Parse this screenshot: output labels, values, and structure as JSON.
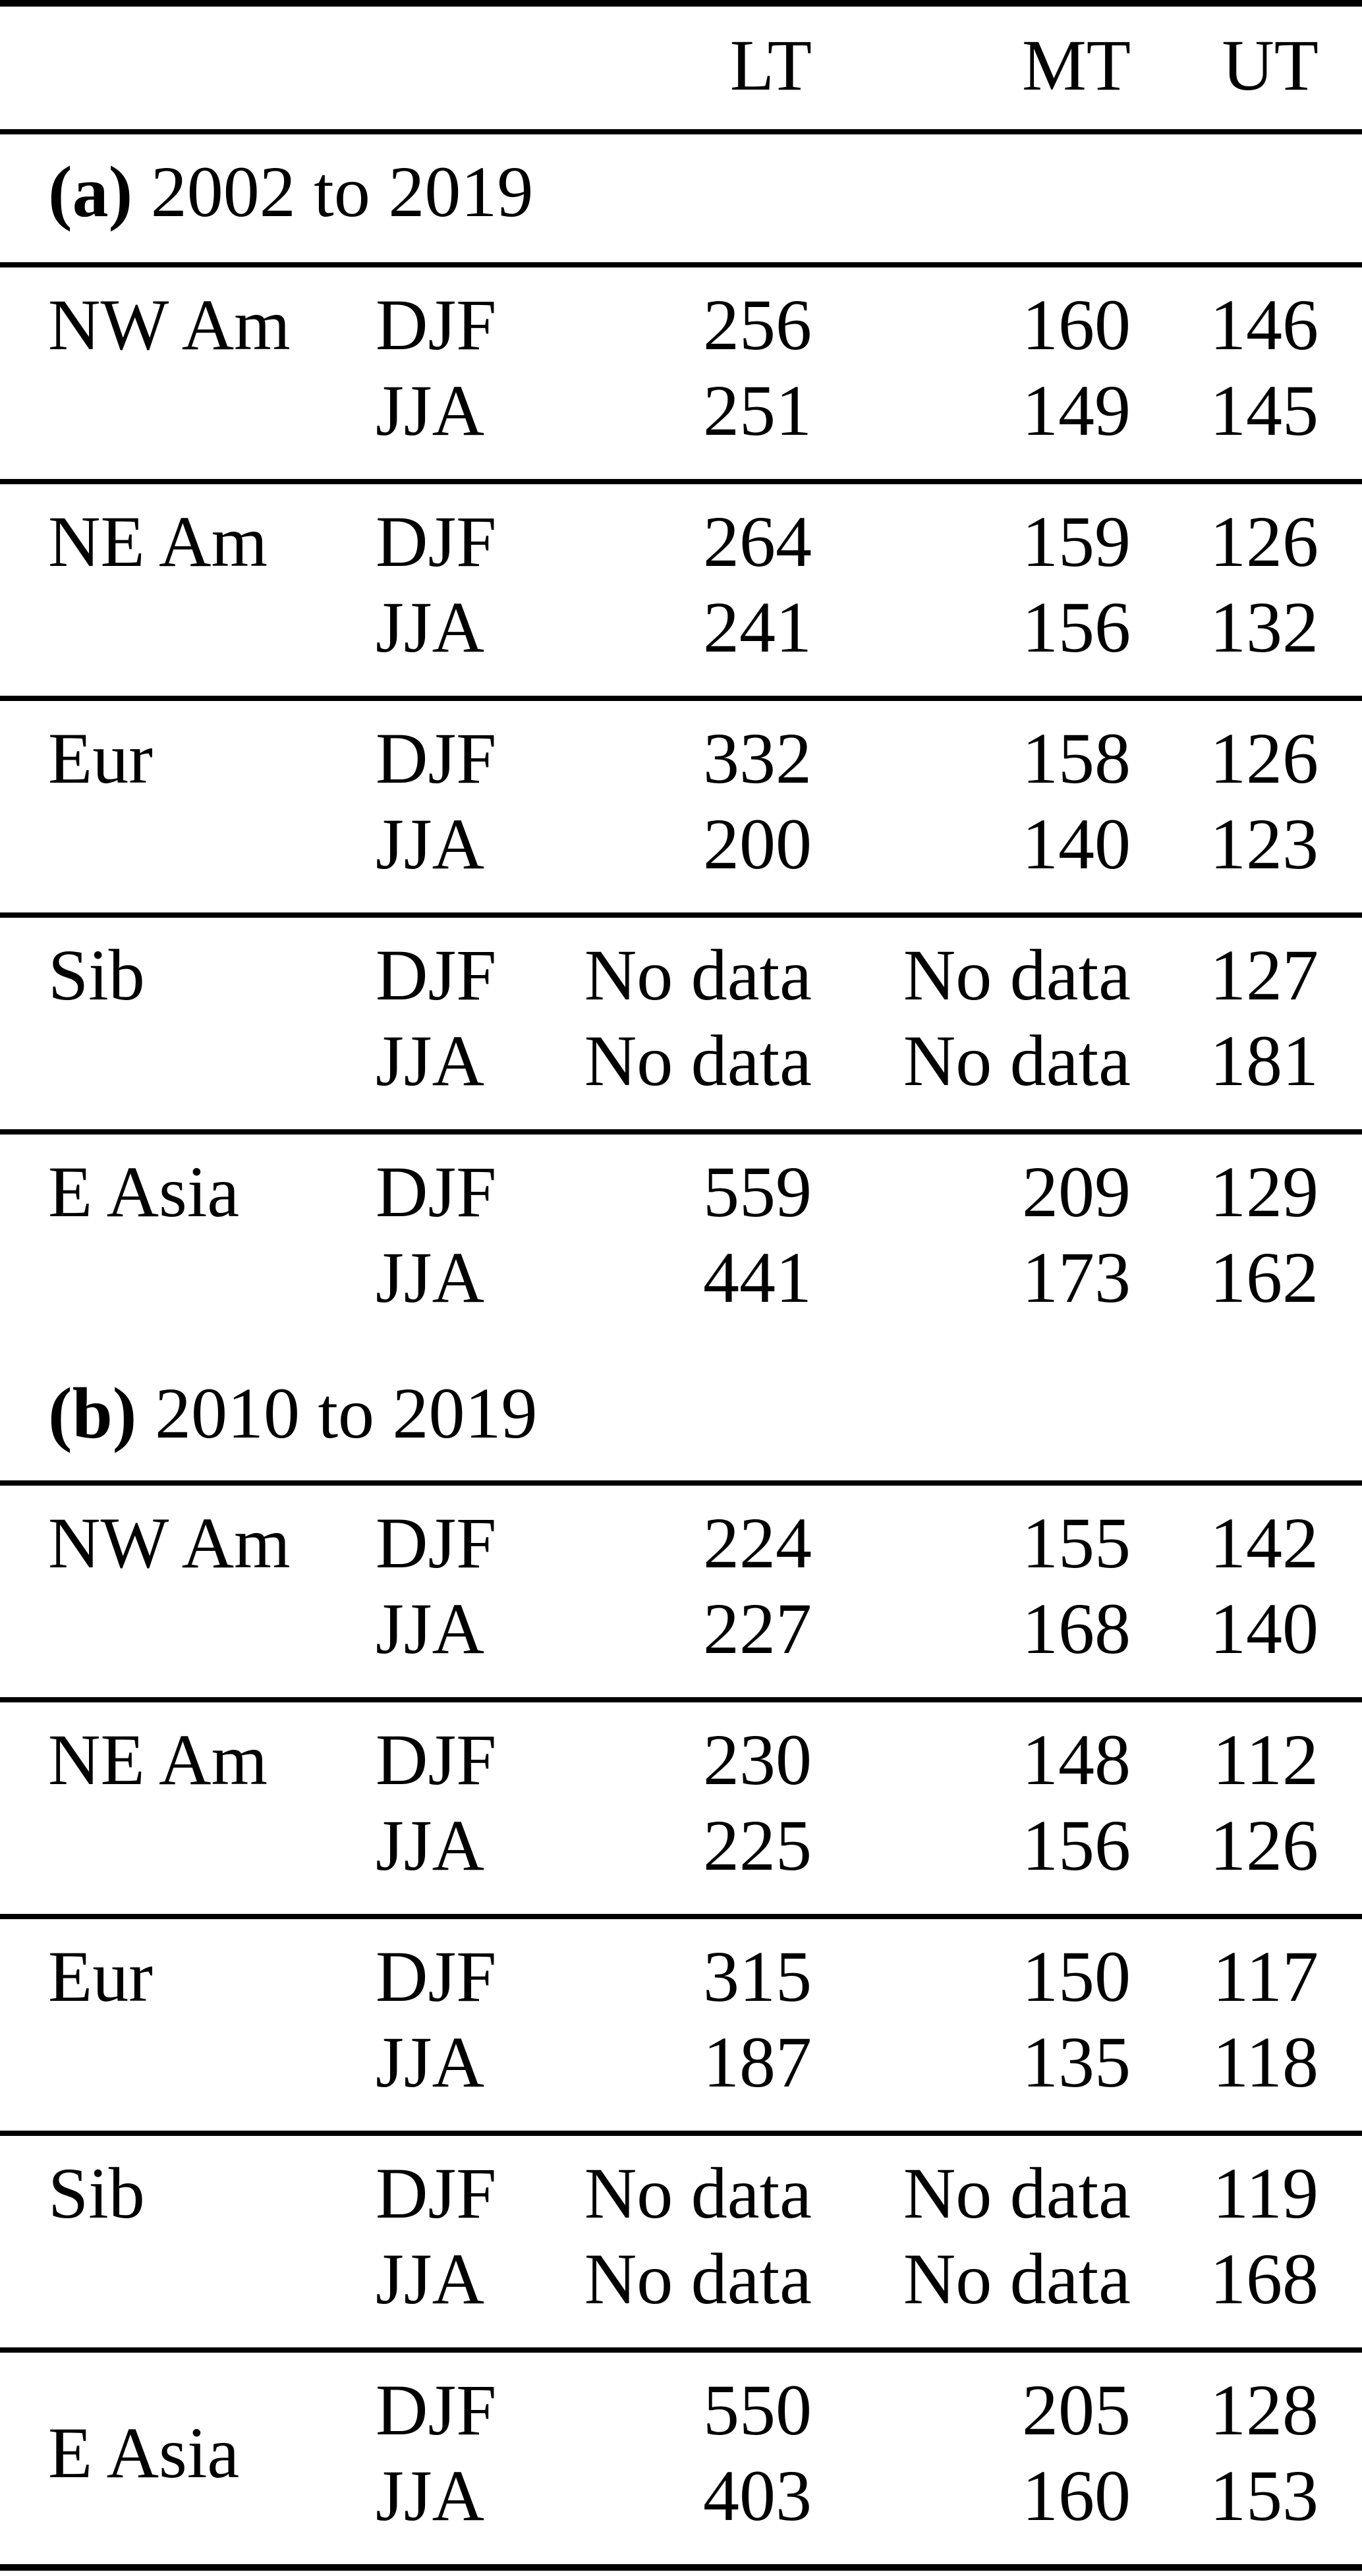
{
  "header": {
    "lt": "LT",
    "mt": "MT",
    "ut": "UT"
  },
  "sections": [
    {
      "label_prefix": "(a)",
      "label_text": " 2002 to 2019",
      "groups": [
        {
          "region": "NW Am",
          "rows": [
            {
              "season": "DJF",
              "lt": "256",
              "mt": "160",
              "ut": "146"
            },
            {
              "season": "JJA",
              "lt": "251",
              "mt": "149",
              "ut": "145"
            }
          ]
        },
        {
          "region": "NE Am",
          "rows": [
            {
              "season": "DJF",
              "lt": "264",
              "mt": "159",
              "ut": "126"
            },
            {
              "season": "JJA",
              "lt": "241",
              "mt": "156",
              "ut": "132"
            }
          ]
        },
        {
          "region": "Eur",
          "rows": [
            {
              "season": "DJF",
              "lt": "332",
              "mt": "158",
              "ut": "126"
            },
            {
              "season": "JJA",
              "lt": "200",
              "mt": "140",
              "ut": "123"
            }
          ]
        },
        {
          "region": "Sib",
          "rows": [
            {
              "season": "DJF",
              "lt": "No data",
              "mt": "No data",
              "ut": "127"
            },
            {
              "season": "JJA",
              "lt": "No data",
              "mt": "No data",
              "ut": "181"
            }
          ]
        },
        {
          "region": "E Asia",
          "rows": [
            {
              "season": "DJF",
              "lt": "559",
              "mt": "209",
              "ut": "129"
            },
            {
              "season": "JJA",
              "lt": "441",
              "mt": "173",
              "ut": "162"
            }
          ]
        }
      ]
    },
    {
      "label_prefix": "(b)",
      "label_text": " 2010 to 2019",
      "groups": [
        {
          "region": "NW Am",
          "rows": [
            {
              "season": "DJF",
              "lt": "224",
              "mt": "155",
              "ut": "142"
            },
            {
              "season": "JJA",
              "lt": "227",
              "mt": "168",
              "ut": "140"
            }
          ]
        },
        {
          "region": "NE Am",
          "rows": [
            {
              "season": "DJF",
              "lt": "230",
              "mt": "148",
              "ut": "112"
            },
            {
              "season": "JJA",
              "lt": "225",
              "mt": "156",
              "ut": "126"
            }
          ]
        },
        {
          "region": "Eur",
          "rows": [
            {
              "season": "DJF",
              "lt": "315",
              "mt": "150",
              "ut": "117"
            },
            {
              "season": "JJA",
              "lt": "187",
              "mt": "135",
              "ut": "118"
            }
          ]
        },
        {
          "region": "Sib",
          "rows": [
            {
              "season": "DJF",
              "lt": "No data",
              "mt": "No data",
              "ut": "119"
            },
            {
              "season": "JJA",
              "lt": "No data",
              "mt": "No data",
              "ut": "168"
            }
          ]
        },
        {
          "region": "E Asia",
          "rows": [
            {
              "season": "DJF",
              "lt": "550",
              "mt": "205",
              "ut": "128"
            },
            {
              "season": "JJA",
              "lt": "403",
              "mt": "160",
              "ut": "153"
            }
          ]
        }
      ]
    }
  ]
}
